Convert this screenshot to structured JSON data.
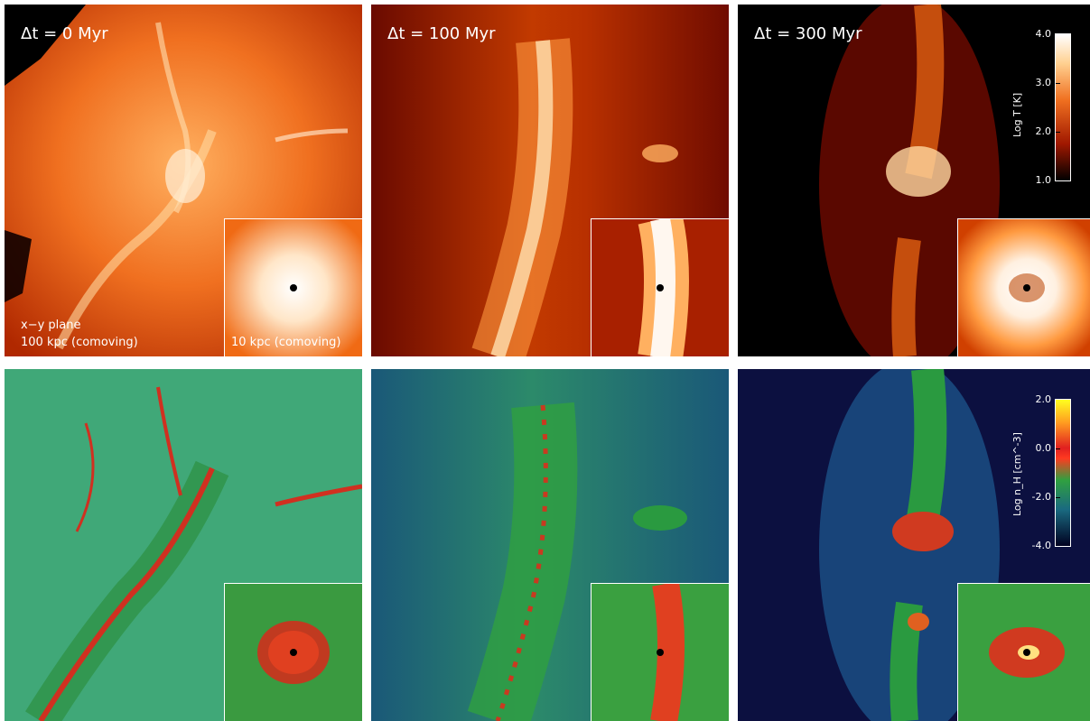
{
  "panels_top": [
    {
      "time_label": "Δt = 0 Myr"
    },
    {
      "time_label": "Δt = 100 Myr"
    },
    {
      "time_label": "Δt = 300 Myr"
    }
  ],
  "annotations": {
    "plane": "x−y plane",
    "scale_main": "100 kpc (comoving)",
    "scale_inset": "10 kpc (comoving)"
  },
  "colorbar_temperature": {
    "title": "Log T [K]",
    "ticks": [
      "4.0",
      "3.0",
      "2.0",
      "1.0"
    ],
    "range": [
      1.0,
      4.0
    ]
  },
  "colorbar_density": {
    "title": "Log n_H [cm^-3]",
    "ticks": [
      "2.0",
      "0.0",
      "-2.0",
      "-4.0"
    ],
    "range": [
      -4.0,
      2.0
    ]
  }
}
